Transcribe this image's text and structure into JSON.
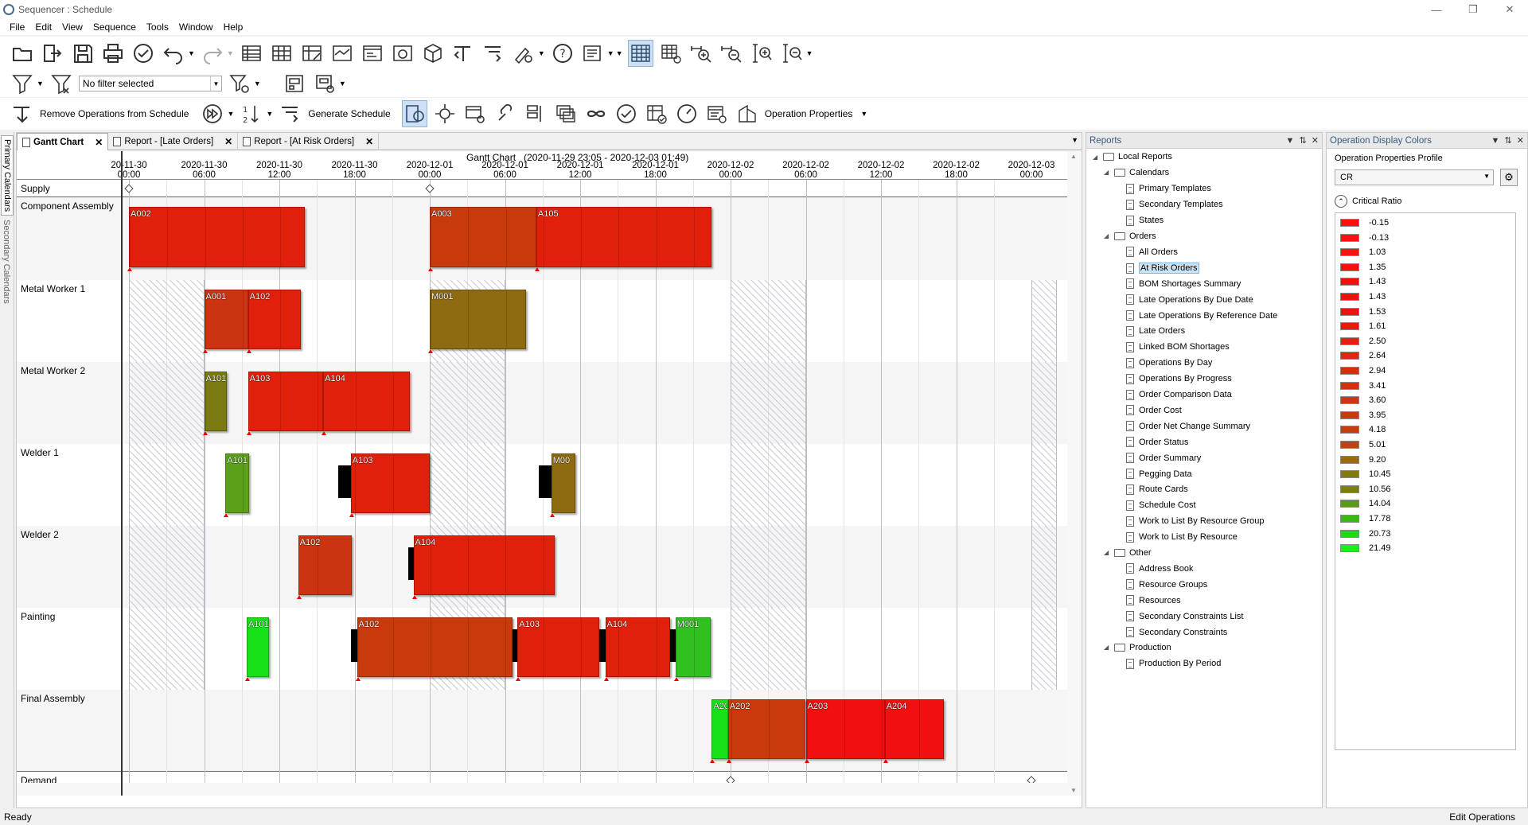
{
  "window": {
    "title": "Sequencer : Schedule"
  },
  "menu": [
    "File",
    "Edit",
    "View",
    "Sequence",
    "Tools",
    "Window",
    "Help"
  ],
  "toolbar": {
    "filter_placeholder": "No filter selected",
    "remove_ops": "Remove Operations from Schedule",
    "generate": "Generate Schedule",
    "op_props": "Operation Properties"
  },
  "left_tabs": {
    "primary": "Primary Calendars",
    "secondary": "Secondary Calendars"
  },
  "doc_tabs": [
    {
      "label": "Gantt Chart"
    },
    {
      "label": "Report - [Late Orders]"
    },
    {
      "label": "Report - [At Risk Orders]"
    }
  ],
  "gantt": {
    "title": "Gantt Chart",
    "range": "(2020-11-29 23:05 - 2020-12-03 01:49)",
    "ticks": [
      {
        "date": "20-11-30",
        "time": "00:00"
      },
      {
        "date": "2020-11-30",
        "time": "06:00"
      },
      {
        "date": "2020-11-30",
        "time": "12:00"
      },
      {
        "date": "2020-11-30",
        "time": "18:00"
      },
      {
        "date": "2020-12-01",
        "time": "00:00"
      },
      {
        "date": "2020-12-01",
        "time": "06:00"
      },
      {
        "date": "2020-12-01",
        "time": "12:00"
      },
      {
        "date": "2020-12-01",
        "time": "18:00"
      },
      {
        "date": "2020-12-02",
        "time": "00:00"
      },
      {
        "date": "2020-12-02",
        "time": "06:00"
      },
      {
        "date": "2020-12-02",
        "time": "12:00"
      },
      {
        "date": "2020-12-02",
        "time": "18:00"
      },
      {
        "date": "2020-12-03",
        "time": "00:00"
      }
    ],
    "rows": [
      {
        "name": "Supply"
      },
      {
        "name": "Component Assembly"
      },
      {
        "name": "Metal Worker 1"
      },
      {
        "name": "Metal Worker 2"
      },
      {
        "name": "Welder 1"
      },
      {
        "name": "Welder 2"
      },
      {
        "name": "Painting"
      },
      {
        "name": "Final Assembly"
      },
      {
        "name": "Demand"
      }
    ],
    "operations": [
      {
        "row": 1,
        "label": "A002",
        "start_h": 0,
        "end_h": 14,
        "color": "#e0200a"
      },
      {
        "row": 1,
        "label": "A003",
        "start_h": 24,
        "end_h": 32.5,
        "color": "#c83a0c"
      },
      {
        "row": 1,
        "label": "A105",
        "start_h": 32.5,
        "end_h": 46.5,
        "color": "#e0200a"
      },
      {
        "row": 2,
        "label": "A001",
        "start_h": 6,
        "end_h": 9.5,
        "color": "#cc3310"
      },
      {
        "row": 2,
        "label": "A102",
        "start_h": 9.5,
        "end_h": 13.7,
        "color": "#e0200a"
      },
      {
        "row": 2,
        "label": "M001",
        "start_h": 24,
        "end_h": 31.7,
        "color": "#8e6a10"
      },
      {
        "row": 3,
        "label": "A101",
        "start_h": 6,
        "end_h": 7.8,
        "color": "#7a7a10"
      },
      {
        "row": 3,
        "label": "A103",
        "start_h": 9.5,
        "end_h": 15.5,
        "color": "#e0200a"
      },
      {
        "row": 3,
        "label": "A104",
        "start_h": 15.5,
        "end_h": 22.4,
        "color": "#e0200a"
      },
      {
        "row": 4,
        "label": "A101",
        "start_h": 7.7,
        "end_h": 9.6,
        "color": "#5aa018"
      },
      {
        "row": 4,
        "label": "A103",
        "start_h": 17.7,
        "end_h": 24,
        "color": "#e0200a"
      },
      {
        "row": 4,
        "label": "M00",
        "start_h": 33.7,
        "end_h": 35.6,
        "color": "#8e6a10"
      },
      {
        "row": 5,
        "label": "A102",
        "start_h": 13.5,
        "end_h": 17.8,
        "color": "#cc3310"
      },
      {
        "row": 5,
        "label": "A104",
        "start_h": 22.7,
        "end_h": 34,
        "color": "#e0200a"
      },
      {
        "row": 6,
        "label": "A101",
        "start_h": 9.4,
        "end_h": 11.2,
        "color": "#18e018"
      },
      {
        "row": 6,
        "label": "A102",
        "start_h": 18.2,
        "end_h": 30.6,
        "color": "#c83a0c"
      },
      {
        "row": 6,
        "label": "A103",
        "start_h": 31,
        "end_h": 37.5,
        "color": "#e0200a"
      },
      {
        "row": 6,
        "label": "A104",
        "start_h": 38,
        "end_h": 43.2,
        "color": "#e0200a"
      },
      {
        "row": 6,
        "label": "M001",
        "start_h": 43.6,
        "end_h": 46.4,
        "color": "#30c020"
      },
      {
        "row": 7,
        "label": "A20",
        "start_h": 46.5,
        "end_h": 47.8,
        "color": "#18e018"
      },
      {
        "row": 7,
        "label": "A202",
        "start_h": 47.8,
        "end_h": 54,
        "color": "#c83a0c"
      },
      {
        "row": 7,
        "label": "A203",
        "start_h": 54,
        "end_h": 60.3,
        "color": "#f01010"
      },
      {
        "row": 7,
        "label": "A204",
        "start_h": 60.3,
        "end_h": 65,
        "color": "#f01010"
      }
    ]
  },
  "reports": {
    "title": "Reports",
    "tree": [
      {
        "level": 0,
        "type": "folder",
        "label": "Local Reports",
        "expanded": true
      },
      {
        "level": 1,
        "type": "folder",
        "label": "Calendars",
        "expanded": true
      },
      {
        "level": 2,
        "type": "report",
        "label": "Primary Templates"
      },
      {
        "level": 2,
        "type": "report",
        "label": "Secondary Templates"
      },
      {
        "level": 2,
        "type": "report",
        "label": "States"
      },
      {
        "level": 1,
        "type": "folder",
        "label": "Orders",
        "expanded": true
      },
      {
        "level": 2,
        "type": "report",
        "label": "All Orders"
      },
      {
        "level": 2,
        "type": "report",
        "label": "At Risk Orders",
        "selected": true
      },
      {
        "level": 2,
        "type": "report",
        "label": "BOM Shortages Summary"
      },
      {
        "level": 2,
        "type": "report",
        "label": "Late Operations By Due Date"
      },
      {
        "level": 2,
        "type": "report",
        "label": "Late Operations By Reference Date"
      },
      {
        "level": 2,
        "type": "report",
        "label": "Late Orders"
      },
      {
        "level": 2,
        "type": "report",
        "label": "Linked BOM Shortages"
      },
      {
        "level": 2,
        "type": "report",
        "label": "Operations By Day"
      },
      {
        "level": 2,
        "type": "report",
        "label": "Operations By Progress"
      },
      {
        "level": 2,
        "type": "report",
        "label": "Order Comparison Data"
      },
      {
        "level": 2,
        "type": "report",
        "label": "Order Cost"
      },
      {
        "level": 2,
        "type": "report",
        "label": "Order Net Change Summary"
      },
      {
        "level": 2,
        "type": "report",
        "label": "Order Status"
      },
      {
        "level": 2,
        "type": "report",
        "label": "Order Summary"
      },
      {
        "level": 2,
        "type": "report",
        "label": "Pegging Data"
      },
      {
        "level": 2,
        "type": "report",
        "label": "Route Cards"
      },
      {
        "level": 2,
        "type": "report",
        "label": "Schedule Cost"
      },
      {
        "level": 2,
        "type": "report",
        "label": "Work to List By Resource Group"
      },
      {
        "level": 2,
        "type": "report",
        "label": "Work to List By Resource"
      },
      {
        "level": 1,
        "type": "folder",
        "label": "Other",
        "expanded": true
      },
      {
        "level": 2,
        "type": "report",
        "label": "Address Book"
      },
      {
        "level": 2,
        "type": "report",
        "label": "Resource Groups"
      },
      {
        "level": 2,
        "type": "report",
        "label": "Resources"
      },
      {
        "level": 2,
        "type": "report",
        "label": "Secondary Constraints List"
      },
      {
        "level": 2,
        "type": "report",
        "label": "Secondary Constraints"
      },
      {
        "level": 1,
        "type": "folder",
        "label": "Production",
        "expanded": true
      },
      {
        "level": 2,
        "type": "report",
        "label": "Production By Period"
      }
    ]
  },
  "colors": {
    "title": "Operation Display Colors",
    "profile_label": "Operation Properties Profile",
    "profile_value": "CR",
    "group": "Critical Ratio",
    "items": [
      {
        "value": "-0.15",
        "color": "#ff1010"
      },
      {
        "value": "-0.13",
        "color": "#ff1010"
      },
      {
        "value": "1.03",
        "color": "#ff1010"
      },
      {
        "value": "1.35",
        "color": "#f81010"
      },
      {
        "value": "1.43",
        "color": "#f01010"
      },
      {
        "value": "1.43",
        "color": "#f01010"
      },
      {
        "value": "1.53",
        "color": "#ec1410"
      },
      {
        "value": "1.61",
        "color": "#e81a10"
      },
      {
        "value": "2.50",
        "color": "#e02010"
      },
      {
        "value": "2.64",
        "color": "#dc2810"
      },
      {
        "value": "2.94",
        "color": "#d82c10"
      },
      {
        "value": "3.41",
        "color": "#d03210"
      },
      {
        "value": "3.60",
        "color": "#cc3610"
      },
      {
        "value": "3.95",
        "color": "#c83a10"
      },
      {
        "value": "4.18",
        "color": "#c43e10"
      },
      {
        "value": "5.01",
        "color": "#bc4410"
      },
      {
        "value": "9.20",
        "color": "#9a6a10"
      },
      {
        "value": "10.45",
        "color": "#807a10"
      },
      {
        "value": "10.56",
        "color": "#7a8010"
      },
      {
        "value": "14.04",
        "color": "#5a9a18"
      },
      {
        "value": "17.78",
        "color": "#3ab818"
      },
      {
        "value": "20.73",
        "color": "#20d818"
      },
      {
        "value": "21.49",
        "color": "#18f018"
      }
    ]
  },
  "status": {
    "left": "Ready",
    "right": "Edit Operations"
  }
}
